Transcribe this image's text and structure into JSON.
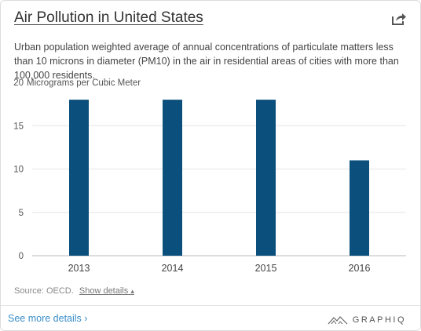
{
  "title": "Air Pollution in United States",
  "subtitle": "Urban population weighted average of annual concentrations of particulate matters less than 10 microns in diameter (PM10) in the air in residential areas of cities with more than 100,000 residents.",
  "source_label": "Source: OECD.",
  "show_details_label": "Show details",
  "show_details_arrow": "▴",
  "see_more_label": "See more details ›",
  "brand_name": "GRAPHIQ",
  "icons": {
    "share": "share-arrow-icon",
    "brand": "mountain-logo-icon"
  },
  "colors": {
    "bar": "#0b4f7c",
    "link": "#3a8ec9"
  },
  "chart_data": {
    "type": "bar",
    "categories": [
      "2013",
      "2014",
      "2015",
      "2016"
    ],
    "values": [
      18,
      18,
      18,
      11
    ],
    "ylabel": "Micrograms per Cubic Meter",
    "ylim": [
      0,
      20
    ],
    "yticks": [
      0,
      5,
      10,
      15,
      20
    ],
    "grid": true
  }
}
